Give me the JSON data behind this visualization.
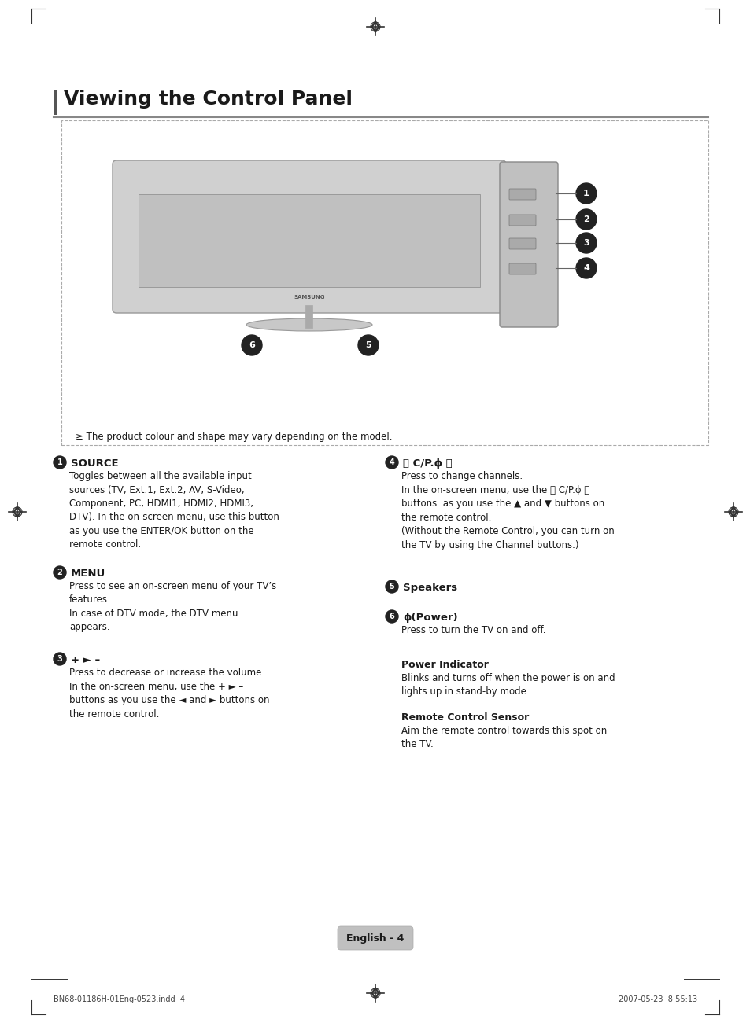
{
  "title": "Viewing the Control Panel",
  "bg_color": "#ffffff",
  "text_color": "#1a1a1a",
  "page_label": "English - 4",
  "footer_left": "BN68-01186H-01Eng-0523.indd  4",
  "footer_right": "2007-05-23  8:55:13",
  "note_text": "≥ The product colour and shape may vary depending on the model.",
  "item1_title": "SOURCE",
  "item1_body": "Toggles between all the available input\nsources (TV, Ext.1, Ext.2, AV, S-Video,\nComponent, PC, HDMI1, HDMI2, HDMI3,\nDTV). In the on-screen menu, use this button\nas you use the ENTER/OK button on the\nremote control.",
  "item2_title": "MENU",
  "item2_body": "Press to see an on-screen menu of your TV’s\nfeatures.\nIn case of DTV mode, the DTV menu\nappears.",
  "item3_title": "+ ► –",
  "item3_body": "Press to decrease or increase the volume.\nIn the on-screen menu, use the + ► –\nbuttons as you use the ◄ and ► buttons on\nthe remote control.",
  "item4_title": "〈 C/P.ϕ 〉",
  "item4_body": "Press to change channels.\nIn the on-screen menu, use the 〈 C/P.ϕ 〉\nbuttons  as you use the ▲ and ▼ buttons on\nthe remote control.\n(Without the Remote Control, you can turn on\nthe TV by using the Channel buttons.)",
  "item5_title": "Speakers",
  "item5_body": "",
  "item6_title": "ϕ(Power)",
  "item6_body": "Press to turn the TV on and off.",
  "power_indicator_title": "Power Indicator",
  "power_indicator_body": "Blinks and turns off when the power is on and\nlights up in stand-by mode.",
  "remote_sensor_title": "Remote Control Sensor",
  "remote_sensor_body": "Aim the remote control towards this spot on\nthe TV.",
  "title_color": "#1a1a1a",
  "bar_color": "#555555",
  "rule_color": "#888888",
  "box_edge_color": "#aaaaaa",
  "callout_fill": "#222222",
  "callout_text": "#ffffff",
  "tv_body_color": "#d0d0d0",
  "tv_screen_color": "#c0c0c0",
  "panel_color": "#c0c0c0",
  "stand_color": "#c8c8c8",
  "badge_color": "#c0c0c0"
}
